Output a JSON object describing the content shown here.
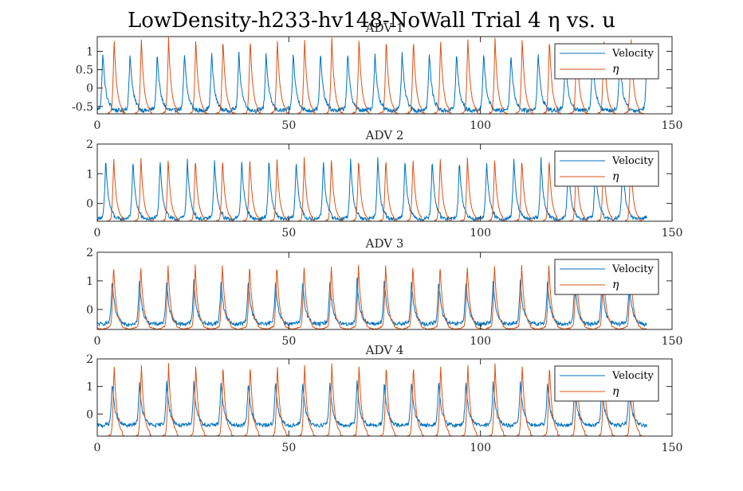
{
  "figure_title": "LowDensity-h233-hv148-NoWall Trial 4 η vs. u",
  "colors": {
    "velocity": "#0072BD",
    "eta": "#D95319"
  },
  "chart_data": [
    {
      "type": "line",
      "title": "ADV 1",
      "xlim": [
        0,
        150
      ],
      "ylim": [
        -0.7,
        1.4
      ],
      "xticks": [
        0,
        50,
        100,
        150
      ],
      "yticks": [
        -0.5,
        0,
        0.5,
        1
      ],
      "ytick_labels": [
        "-0.5",
        "0",
        "0.5",
        "1"
      ],
      "legend_position": "top-right",
      "period": 7.1,
      "t_end": 143.5,
      "series": [
        {
          "name": "Velocity",
          "peak_phase": 0.55,
          "peak_value": 1.0,
          "base_value": -0.55,
          "noise": 0.06
        },
        {
          "name": "η",
          "peak_phase": 3.5,
          "peak_value": 1.38,
          "base_value": -0.65,
          "noise": 0.02
        }
      ]
    },
    {
      "type": "line",
      "title": "ADV 2",
      "xlim": [
        0,
        150
      ],
      "ylim": [
        -0.6,
        2
      ],
      "xticks": [
        0,
        50,
        100,
        150
      ],
      "yticks": [
        0,
        1,
        2
      ],
      "ytick_labels": [
        "0",
        "1",
        "2"
      ],
      "legend_position": "top-right",
      "period": 7.1,
      "t_end": 143.5,
      "series": [
        {
          "name": "Velocity",
          "peak_phase": 1.3,
          "peak_value": 1.5,
          "base_value": -0.45,
          "noise": 0.06
        },
        {
          "name": "η",
          "peak_phase": 3.4,
          "peak_value": 1.55,
          "base_value": -0.55,
          "noise": 0.02
        }
      ]
    },
    {
      "type": "line",
      "title": "ADV 3",
      "xlim": [
        0,
        150
      ],
      "ylim": [
        -0.7,
        2
      ],
      "xticks": [
        0,
        50,
        100,
        150
      ],
      "yticks": [
        0,
        1,
        2
      ],
      "ytick_labels": [
        "0",
        "1",
        "2"
      ],
      "legend_position": "top-right",
      "period": 7.1,
      "t_end": 143.5,
      "series": [
        {
          "name": "Velocity",
          "peak_phase": 3.0,
          "peak_value": 1.05,
          "base_value": -0.45,
          "noise": 0.07
        },
        {
          "name": "η",
          "peak_phase": 3.35,
          "peak_value": 1.6,
          "base_value": -0.6,
          "noise": 0.02
        }
      ]
    },
    {
      "type": "line",
      "title": "ADV 4",
      "xlim": [
        0,
        150
      ],
      "ylim": [
        -0.8,
        2
      ],
      "xticks": [
        0,
        50,
        100,
        150
      ],
      "yticks": [
        0,
        1,
        2
      ],
      "ytick_labels": [
        "0",
        "1",
        "2"
      ],
      "legend_position": "top-right",
      "period": 7.1,
      "t_end": 143.5,
      "series": [
        {
          "name": "Velocity",
          "peak_phase": 3.0,
          "peak_value": 1.2,
          "base_value": -0.35,
          "noise": 0.07
        },
        {
          "name": "η",
          "peak_phase": 3.5,
          "peak_value": 1.85,
          "base_value": -0.75,
          "noise": 0.02
        }
      ]
    }
  ]
}
